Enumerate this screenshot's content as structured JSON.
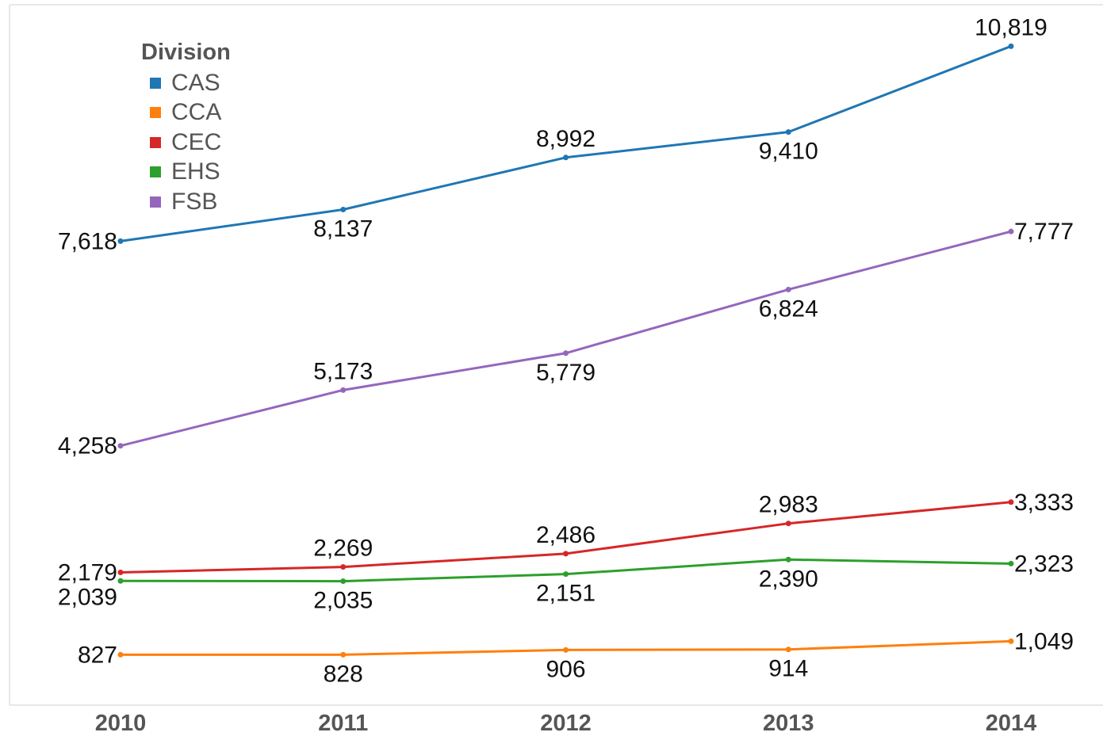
{
  "chart_data": {
    "type": "line",
    "x": [
      "2010",
      "2011",
      "2012",
      "2013",
      "2014"
    ],
    "legend": {
      "title": "Division",
      "placement": "top-left"
    },
    "series": [
      {
        "name": "CAS",
        "color": "#1f77b4",
        "values": [
          7618,
          8137,
          8992,
          9410,
          10819
        ],
        "labels": [
          "7,618",
          "8,137",
          "8,992",
          "9,410",
          "10,819"
        ]
      },
      {
        "name": "CCA",
        "color": "#ff7f0e",
        "values": [
          827,
          828,
          906,
          914,
          1049
        ],
        "labels": [
          "827",
          "828",
          "906",
          "914",
          "1,049"
        ]
      },
      {
        "name": "CEC",
        "color": "#d62728",
        "values": [
          2179,
          2269,
          2486,
          2983,
          3333
        ],
        "labels": [
          "2,179",
          "2,269",
          "2,486",
          "2,983",
          "3,333"
        ]
      },
      {
        "name": "EHS",
        "color": "#2ca02c",
        "values": [
          2039,
          2035,
          2151,
          2390,
          2323
        ],
        "labels": [
          "2,039",
          "2,035",
          "2,151",
          "2,390",
          "2,323"
        ]
      },
      {
        "name": "FSB",
        "color": "#9467bd",
        "values": [
          4258,
          5173,
          5779,
          6824,
          7777
        ],
        "labels": [
          "4,258",
          "5,173",
          "5,779",
          "6,824",
          "7,777"
        ]
      }
    ],
    "ylim": [
      0,
      11500
    ],
    "grid": false,
    "title": "",
    "xlabel": "",
    "ylabel": ""
  }
}
